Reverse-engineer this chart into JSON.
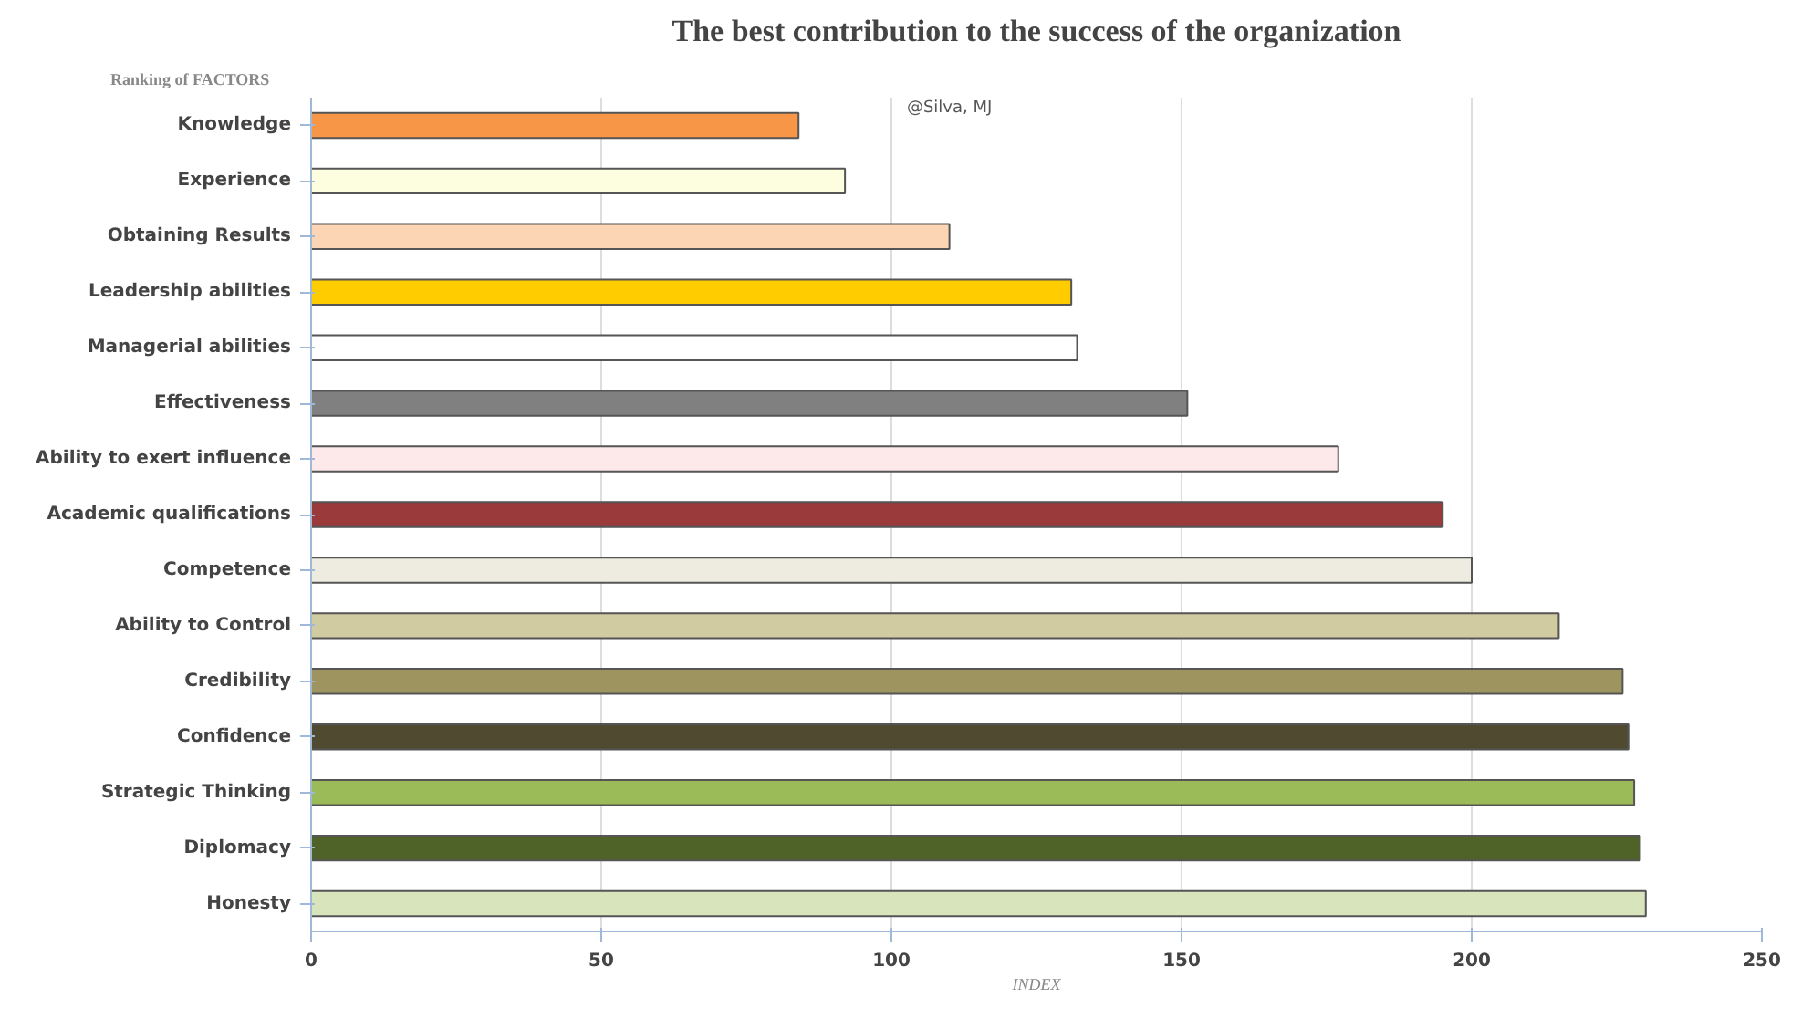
{
  "chart_data": {
    "type": "bar",
    "orientation": "horizontal",
    "title": "The best contribution to the success of the organization",
    "xlabel": "INDEX",
    "ylabel": "Ranking of FACTORS",
    "categories": [
      "Knowledge",
      "Experience",
      "Obtaining Results",
      "Leadership abilities",
      "Managerial abilities",
      "Effectiveness",
      "Ability to exert influence",
      "Academic qualifications",
      "Competence",
      "Ability to Control",
      "Credibility",
      "Confidence",
      "Strategic Thinking",
      "Diplomacy",
      "Honesty"
    ],
    "values": [
      84,
      92,
      110,
      131,
      132,
      151,
      177,
      195,
      200,
      215,
      226,
      227,
      228,
      229,
      230
    ],
    "colors": [
      "#f79646",
      "#fdfde0",
      "#fcd5b4",
      "#ffcc00",
      "#ffffff",
      "#808080",
      "#fde9e9",
      "#9b3a3a",
      "#eeece1",
      "#d0cba0",
      "#9d9460",
      "#4f4a30",
      "#9bbb59",
      "#4f6228",
      "#d7e4bc"
    ],
    "xlim": [
      0,
      250
    ],
    "xticks": [
      0,
      50,
      100,
      150,
      200,
      250
    ],
    "grid": "x",
    "annotations": [
      "@Silva, MJ"
    ]
  }
}
